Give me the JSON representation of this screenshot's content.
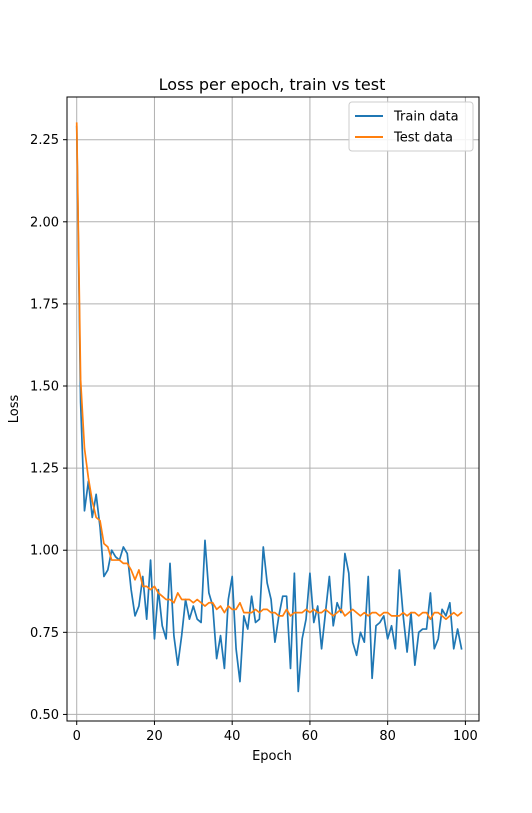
{
  "chart_data": {
    "type": "line",
    "title": "Loss per epoch, train vs test",
    "xlabel": "Epoch",
    "ylabel": "Loss",
    "xlim": [
      -2.5,
      103.5
    ],
    "ylim": [
      0.48,
      2.38
    ],
    "xticks": [
      0,
      20,
      40,
      60,
      80,
      100
    ],
    "xtick_labels": [
      "0",
      "20",
      "40",
      "60",
      "80",
      "100"
    ],
    "yticks": [
      0.5,
      0.75,
      1.0,
      1.25,
      1.5,
      1.75,
      2.0,
      2.25
    ],
    "ytick_labels": [
      "0.50",
      "0.75",
      "1.00",
      "1.25",
      "1.50",
      "1.75",
      "2.00",
      "2.25"
    ],
    "grid": true,
    "legend_position": "top-right",
    "x": [
      0,
      1,
      2,
      3,
      4,
      5,
      6,
      7,
      8,
      9,
      10,
      11,
      12,
      13,
      14,
      15,
      16,
      17,
      18,
      19,
      20,
      21,
      22,
      23,
      24,
      25,
      26,
      27,
      28,
      29,
      30,
      31,
      32,
      33,
      34,
      35,
      36,
      37,
      38,
      39,
      40,
      41,
      42,
      43,
      44,
      45,
      46,
      47,
      48,
      49,
      50,
      51,
      52,
      53,
      54,
      55,
      56,
      57,
      58,
      59,
      60,
      61,
      62,
      63,
      64,
      65,
      66,
      67,
      68,
      69,
      70,
      71,
      72,
      73,
      74,
      75,
      76,
      77,
      78,
      79,
      80,
      81,
      82,
      83,
      84,
      85,
      86,
      87,
      88,
      89,
      90,
      91,
      92,
      93,
      94,
      95,
      96,
      97,
      98,
      99
    ],
    "series": [
      {
        "name": "Train data",
        "color": "#1f77b4",
        "values": [
          2.29,
          1.45,
          1.12,
          1.21,
          1.1,
          1.17,
          1.07,
          0.92,
          0.94,
          1.0,
          0.98,
          0.97,
          1.01,
          0.99,
          0.88,
          0.8,
          0.83,
          0.92,
          0.79,
          0.97,
          0.73,
          0.88,
          0.77,
          0.73,
          0.96,
          0.74,
          0.65,
          0.74,
          0.85,
          0.79,
          0.83,
          0.79,
          0.78,
          1.03,
          0.87,
          0.83,
          0.67,
          0.74,
          0.64,
          0.85,
          0.92,
          0.7,
          0.6,
          0.8,
          0.76,
          0.86,
          0.78,
          0.79,
          1.01,
          0.9,
          0.85,
          0.72,
          0.8,
          0.86,
          0.86,
          0.64,
          0.93,
          0.57,
          0.73,
          0.79,
          0.93,
          0.78,
          0.83,
          0.7,
          0.81,
          0.92,
          0.77,
          0.84,
          0.81,
          0.99,
          0.93,
          0.72,
          0.68,
          0.75,
          0.72,
          0.92,
          0.61,
          0.77,
          0.78,
          0.8,
          0.73,
          0.77,
          0.7,
          0.94,
          0.8,
          0.69,
          0.81,
          0.65,
          0.75,
          0.76,
          0.76,
          0.87,
          0.7,
          0.73,
          0.82,
          0.8,
          0.84,
          0.7,
          0.76,
          0.7
        ]
      },
      {
        "name": "Test data",
        "color": "#ff7f0e",
        "values": [
          2.3,
          1.52,
          1.31,
          1.22,
          1.15,
          1.1,
          1.09,
          1.02,
          1.01,
          0.97,
          0.97,
          0.97,
          0.96,
          0.96,
          0.94,
          0.91,
          0.94,
          0.89,
          0.89,
          0.88,
          0.89,
          0.87,
          0.86,
          0.85,
          0.85,
          0.84,
          0.87,
          0.85,
          0.85,
          0.85,
          0.84,
          0.85,
          0.84,
          0.83,
          0.84,
          0.84,
          0.82,
          0.83,
          0.81,
          0.83,
          0.82,
          0.82,
          0.84,
          0.81,
          0.81,
          0.81,
          0.82,
          0.81,
          0.82,
          0.82,
          0.81,
          0.81,
          0.8,
          0.8,
          0.82,
          0.8,
          0.81,
          0.81,
          0.81,
          0.82,
          0.81,
          0.82,
          0.81,
          0.81,
          0.82,
          0.81,
          0.8,
          0.81,
          0.82,
          0.8,
          0.81,
          0.82,
          0.81,
          0.8,
          0.81,
          0.8,
          0.81,
          0.81,
          0.8,
          0.81,
          0.81,
          0.8,
          0.8,
          0.8,
          0.81,
          0.8,
          0.81,
          0.81,
          0.8,
          0.81,
          0.81,
          0.79,
          0.81,
          0.81,
          0.8,
          0.79,
          0.8,
          0.81,
          0.8,
          0.81
        ]
      }
    ]
  }
}
